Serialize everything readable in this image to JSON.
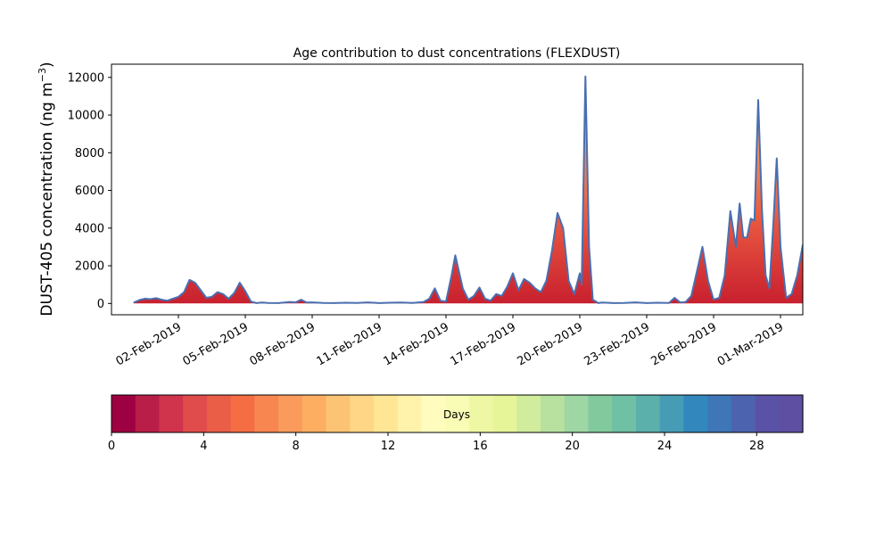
{
  "chart_data": {
    "type": "area",
    "title": "Age contribution to dust concentrations (FLEXDUST)",
    "ylabel_main": "DUST-405 concentration (ng m",
    "ylabel_sup": "−3",
    "ylabel_close": ")",
    "xlabel": "",
    "x_type": "date",
    "xlim": [
      "2019-01-30",
      "2019-03-02"
    ],
    "ylim": [
      -600,
      12700
    ],
    "yticks": [
      0,
      2000,
      4000,
      6000,
      8000,
      10000,
      12000
    ],
    "ytick_labels": [
      "0",
      "2000",
      "4000",
      "6000",
      "8000",
      "10000",
      "12000"
    ],
    "xticks": [
      "2019-02-02",
      "2019-02-05",
      "2019-02-08",
      "2019-02-11",
      "2019-02-14",
      "2019-02-17",
      "2019-02-20",
      "2019-02-23",
      "2019-02-26",
      "2019-03-01"
    ],
    "xtick_labels": [
      "02-Feb-2019",
      "05-Feb-2019",
      "08-Feb-2019",
      "11-Feb-2019",
      "14-Feb-2019",
      "17-Feb-2019",
      "20-Feb-2019",
      "23-Feb-2019",
      "26-Feb-2019",
      "01-Mar-2019"
    ],
    "series": [
      {
        "line_color": "#4a6fb0",
        "points": [
          [
            "2019-01-31T00:00",
            50
          ],
          [
            "2019-01-31T06:00",
            180
          ],
          [
            "2019-01-31T12:00",
            250
          ],
          [
            "2019-01-31T18:00",
            230
          ],
          [
            "2019-02-01T00:00",
            280
          ],
          [
            "2019-02-01T06:00",
            200
          ],
          [
            "2019-02-01T12:00",
            150
          ],
          [
            "2019-02-01T18:00",
            250
          ],
          [
            "2019-02-02T00:00",
            350
          ],
          [
            "2019-02-02T06:00",
            600
          ],
          [
            "2019-02-02T12:00",
            1250
          ],
          [
            "2019-02-02T18:00",
            1100
          ],
          [
            "2019-02-03T00:00",
            700
          ],
          [
            "2019-02-03T06:00",
            300
          ],
          [
            "2019-02-03T12:00",
            350
          ],
          [
            "2019-02-03T18:00",
            600
          ],
          [
            "2019-02-04T00:00",
            500
          ],
          [
            "2019-02-04T06:00",
            250
          ],
          [
            "2019-02-04T12:00",
            550
          ],
          [
            "2019-02-04T18:00",
            1100
          ],
          [
            "2019-02-05T00:00",
            650
          ],
          [
            "2019-02-05T06:00",
            100
          ],
          [
            "2019-02-05T12:00",
            20
          ],
          [
            "2019-02-05T18:00",
            50
          ],
          [
            "2019-02-06T00:00",
            30
          ],
          [
            "2019-02-06T12:00",
            20
          ],
          [
            "2019-02-07T00:00",
            80
          ],
          [
            "2019-02-07T06:00",
            60
          ],
          [
            "2019-02-07T12:00",
            200
          ],
          [
            "2019-02-07T18:00",
            50
          ],
          [
            "2019-02-08T00:00",
            60
          ],
          [
            "2019-02-08T12:00",
            30
          ],
          [
            "2019-02-09T00:00",
            20
          ],
          [
            "2019-02-09T12:00",
            40
          ],
          [
            "2019-02-10T00:00",
            30
          ],
          [
            "2019-02-10T12:00",
            60
          ],
          [
            "2019-02-11T00:00",
            20
          ],
          [
            "2019-02-11T12:00",
            40
          ],
          [
            "2019-02-12T00:00",
            50
          ],
          [
            "2019-02-12T12:00",
            30
          ],
          [
            "2019-02-13T00:00",
            80
          ],
          [
            "2019-02-13T06:00",
            250
          ],
          [
            "2019-02-13T12:00",
            800
          ],
          [
            "2019-02-13T18:00",
            150
          ],
          [
            "2019-02-14T00:00",
            100
          ],
          [
            "2019-02-14T06:00",
            1500
          ],
          [
            "2019-02-14T10:00",
            2550
          ],
          [
            "2019-02-14T18:00",
            800
          ],
          [
            "2019-02-15T00:00",
            200
          ],
          [
            "2019-02-15T06:00",
            400
          ],
          [
            "2019-02-15T12:00",
            850
          ],
          [
            "2019-02-15T18:00",
            250
          ],
          [
            "2019-02-16T00:00",
            150
          ],
          [
            "2019-02-16T06:00",
            500
          ],
          [
            "2019-02-16T12:00",
            400
          ],
          [
            "2019-02-16T18:00",
            900
          ],
          [
            "2019-02-17T00:00",
            1600
          ],
          [
            "2019-02-17T06:00",
            700
          ],
          [
            "2019-02-17T12:00",
            1300
          ],
          [
            "2019-02-17T18:00",
            1100
          ],
          [
            "2019-02-18T00:00",
            800
          ],
          [
            "2019-02-18T06:00",
            600
          ],
          [
            "2019-02-18T12:00",
            1200
          ],
          [
            "2019-02-18T18:00",
            2800
          ],
          [
            "2019-02-19T00:00",
            4800
          ],
          [
            "2019-02-19T06:00",
            4000
          ],
          [
            "2019-02-19T12:00",
            1200
          ],
          [
            "2019-02-19T18:00",
            500
          ],
          [
            "2019-02-20T00:00",
            1600
          ],
          [
            "2019-02-20T02:00",
            1000
          ],
          [
            "2019-02-20T06:00",
            12050
          ],
          [
            "2019-02-20T10:00",
            3000
          ],
          [
            "2019-02-20T14:00",
            200
          ],
          [
            "2019-02-20T20:00",
            20
          ],
          [
            "2019-02-21T00:00",
            50
          ],
          [
            "2019-02-21T12:00",
            20
          ],
          [
            "2019-02-22T00:00",
            30
          ],
          [
            "2019-02-22T12:00",
            60
          ],
          [
            "2019-02-23T00:00",
            20
          ],
          [
            "2019-02-23T12:00",
            40
          ],
          [
            "2019-02-24T00:00",
            30
          ],
          [
            "2019-02-24T06:00",
            300
          ],
          [
            "2019-02-24T12:00",
            50
          ],
          [
            "2019-02-24T18:00",
            80
          ],
          [
            "2019-02-25T00:00",
            400
          ],
          [
            "2019-02-25T06:00",
            1700
          ],
          [
            "2019-02-25T12:00",
            3000
          ],
          [
            "2019-02-25T18:00",
            1200
          ],
          [
            "2019-02-26T00:00",
            200
          ],
          [
            "2019-02-26T06:00",
            300
          ],
          [
            "2019-02-26T12:00",
            1500
          ],
          [
            "2019-02-26T18:00",
            4900
          ],
          [
            "2019-02-27T00:00",
            3000
          ],
          [
            "2019-02-27T04:00",
            5300
          ],
          [
            "2019-02-27T08:00",
            3500
          ],
          [
            "2019-02-27T12:00",
            3500
          ],
          [
            "2019-02-27T16:00",
            4500
          ],
          [
            "2019-02-27T20:00",
            4400
          ],
          [
            "2019-02-28T00:00",
            10800
          ],
          [
            "2019-02-28T04:00",
            5000
          ],
          [
            "2019-02-28T08:00",
            1500
          ],
          [
            "2019-02-28T12:00",
            800
          ],
          [
            "2019-02-28T16:00",
            4000
          ],
          [
            "2019-02-28T20:00",
            7700
          ],
          [
            "2019-03-01T00:00",
            3000
          ],
          [
            "2019-03-01T06:00",
            300
          ],
          [
            "2019-03-01T12:00",
            500
          ],
          [
            "2019-03-01T18:00",
            1500
          ],
          [
            "2019-03-02T00:00",
            3100
          ],
          [
            "2019-03-02T06:00",
            1500
          ],
          [
            "2019-03-02T12:00",
            100
          ],
          [
            "2019-03-02T18:00",
            50
          ],
          [
            "2019-03-03T00:00",
            30
          ]
        ]
      }
    ],
    "colorbar": {
      "label": "Days",
      "range": [
        0,
        30
      ],
      "ticks": [
        0,
        4,
        8,
        12,
        16,
        20,
        24,
        28
      ],
      "tick_labels": [
        "0",
        "4",
        "8",
        "12",
        "16",
        "20",
        "24",
        "28"
      ],
      "colors": [
        "#9e0142",
        "#b81e48",
        "#d0344d",
        "#e04b4b",
        "#ea5e47",
        "#f46d43",
        "#f88650",
        "#fa9b5c",
        "#fdae61",
        "#fdc374",
        "#fed685",
        "#fee695",
        "#fff3ab",
        "#fffcbd",
        "#f8fcb4",
        "#eef8a4",
        "#e6f598",
        "#d0ec9c",
        "#b8e1a0",
        "#9ed6a4",
        "#82ca9e",
        "#6fc0a5",
        "#5bb0ab",
        "#469cb5",
        "#3288bd",
        "#3e76b8",
        "#4c64b0",
        "#5a52a6",
        "#5e4fa2"
      ]
    }
  }
}
